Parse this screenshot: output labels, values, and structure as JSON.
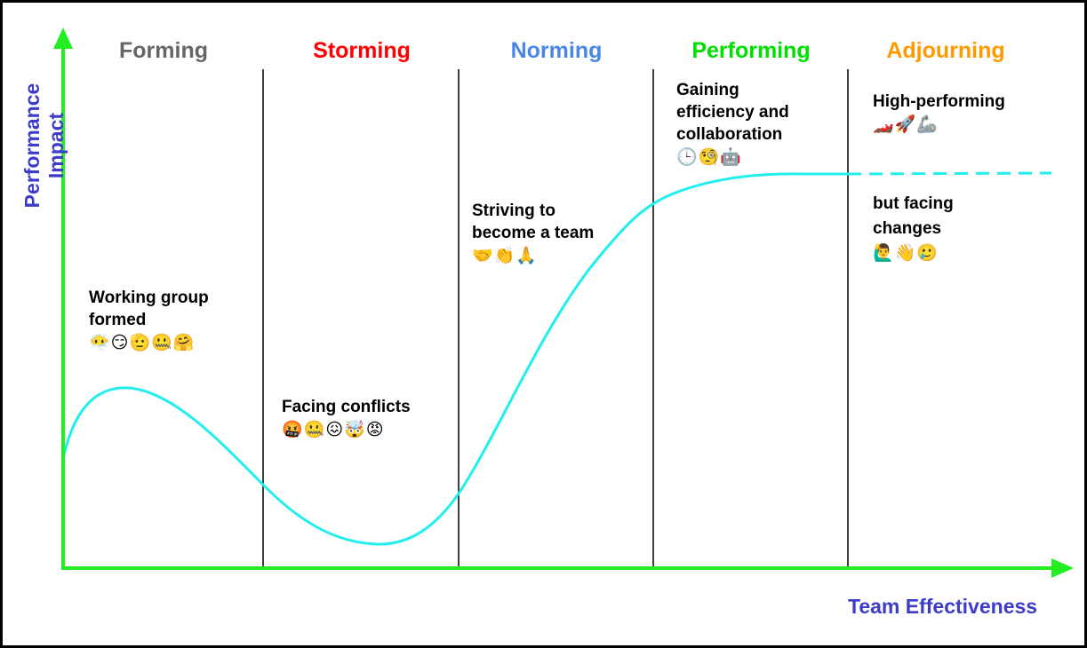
{
  "stages": [
    {
      "label": "Forming",
      "color": "#666666"
    },
    {
      "label": "Storming",
      "color": "#ff0000"
    },
    {
      "label": "Norming",
      "color": "#4a86e8"
    },
    {
      "label": "Performing",
      "color": "#00e000"
    },
    {
      "label": "Adjourning",
      "color": "#ff9900"
    }
  ],
  "notes": {
    "forming": {
      "text": "Working group formed",
      "emoji": "😶‍🌫️😏🫡🤐🤗"
    },
    "storming": {
      "text": "Facing conflicts",
      "emoji": "🤬🤐😖🤯😡"
    },
    "norming": {
      "text": "Striving to become a team",
      "emoji": "🤝👏🙏"
    },
    "performing": {
      "text": "Gaining efficiency and collaboration",
      "emoji": "🕒🧐🤖"
    },
    "adjourning_top": {
      "text": "High-performing",
      "emoji": "🏎️🚀🦾"
    },
    "adjourning_bottom": {
      "text": "but facing changes",
      "emoji": "🙋‍♂️👋🥲"
    }
  },
  "axes": {
    "y_label": "Performance Impact",
    "x_label": "Team Effectiveness"
  },
  "colors": {
    "axis": "#22ee22",
    "curve": "#22eeee",
    "axis_label": "#3c3cc8",
    "divider": "#000000"
  }
}
